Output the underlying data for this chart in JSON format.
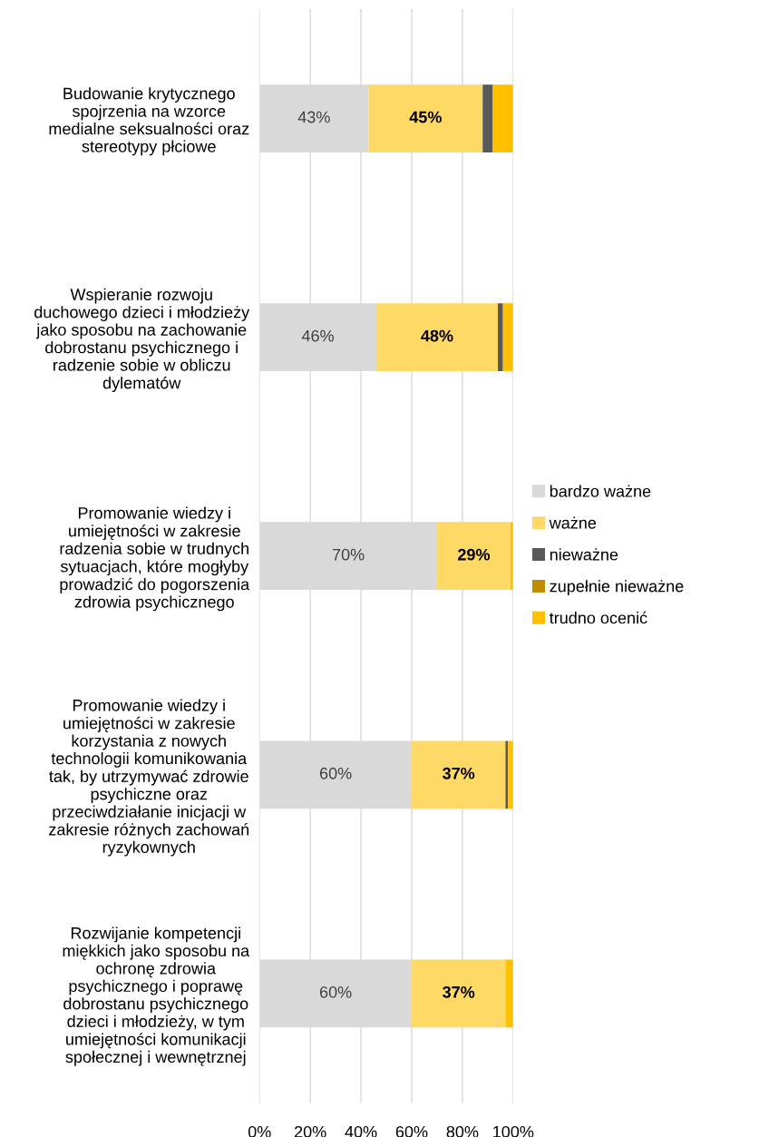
{
  "chart_data": {
    "type": "bar",
    "orientation": "horizontal",
    "stacked": true,
    "categories": [
      "Budowanie krytycznego\nspojrzenia na wzorce\nmedialne seksualności oraz\nstereotypy płciowe",
      "Wspieranie rozwoju\nduchowego dzieci i młodzieży\njako sposobu na zachowanie\ndobrostanu psychicznego i\nradzenie sobie w obliczu\ndylematów",
      "Promowanie wiedzy i\numiejętności w zakresie\nradzenia sobie w trudnych\nsytuacjach, które mogłyby\nprowadzić do pogorszenia\nzdrowia psychicznego",
      "Promowanie wiedzy i\numiejętności w zakresie\nkorzystania z nowych\ntechnologii komunikowania\ntak, by utrzymywać zdrowie\npsychiczne oraz\nprzeciwdziałanie inicjacji w\nzakresie różnych zachowań\nryzykownych",
      "Rozwijanie kompetencji\nmiękkich jako sposobu na\nochronę zdrowia\npsychicznego i poprawę\ndobrostanu psychicznego\ndzieci i młodzieży, w tym\numiejętności komunikacji\nspołecznej i wewnętrznej"
    ],
    "series": [
      {
        "name": "bardzo ważne",
        "color": "#d9d9d9",
        "values": [
          43,
          46,
          70,
          60,
          60
        ],
        "value_labels": [
          "43%",
          "46%",
          "70%",
          "60%",
          "60%"
        ]
      },
      {
        "name": "ważne",
        "color": "#ffd966",
        "values": [
          45,
          48,
          29,
          37,
          37
        ],
        "value_labels": [
          "45%",
          "48%",
          "29%",
          "37%",
          "37%"
        ]
      },
      {
        "name": "nieważne",
        "color": "#595959",
        "values": [
          4,
          2,
          0,
          1,
          0
        ]
      },
      {
        "name": "zupełnie nieważne",
        "color": "#bf8f00",
        "values": [
          0,
          0,
          0,
          0,
          0
        ]
      },
      {
        "name": "trudno ocenić",
        "color": "#ffc000",
        "values": [
          8,
          4,
          1,
          2,
          3
        ]
      }
    ],
    "xlim": [
      0,
      100
    ],
    "xticks": [
      {
        "value": 0,
        "label": "0%"
      },
      {
        "value": 20,
        "label": "20%"
      },
      {
        "value": 40,
        "label": "40%"
      },
      {
        "value": 60,
        "label": "60%"
      },
      {
        "value": 80,
        "label": "80%"
      },
      {
        "value": 100,
        "label": "100%"
      }
    ],
    "grid": "x",
    "legend": "right"
  }
}
